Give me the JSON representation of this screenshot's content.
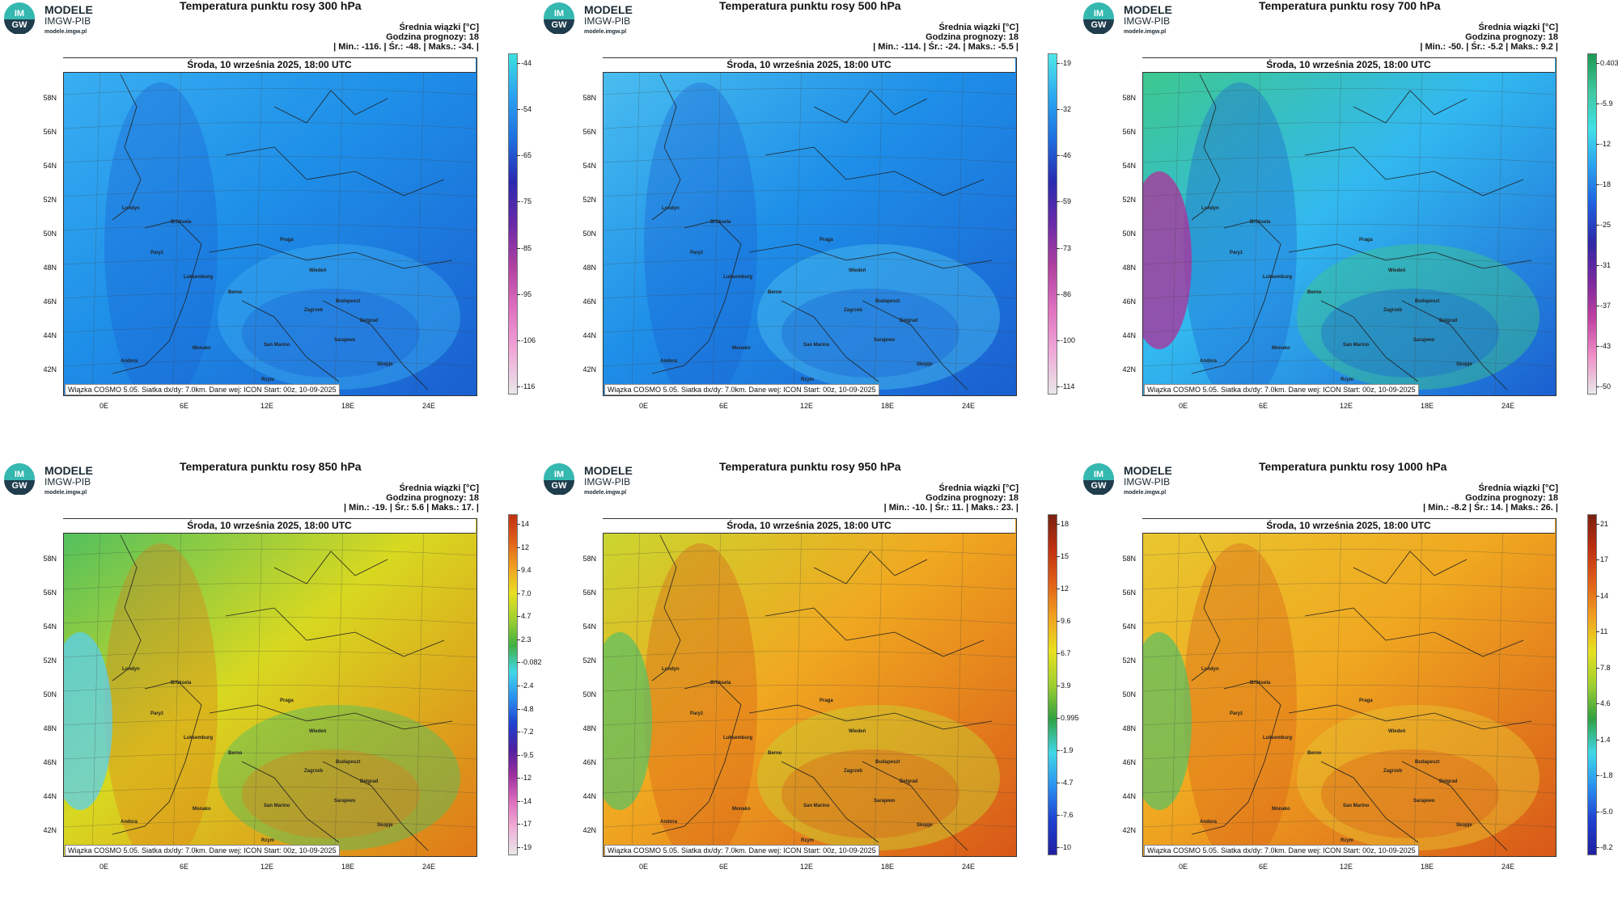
{
  "logo": {
    "line1": "MODELE",
    "line2": "IMGW-PIB",
    "line3": "modele.imgw.pl",
    "badge_top": "IM",
    "badge_bottom": "GW"
  },
  "date": "Środa, 10 września 2025, 18:00 UTC",
  "footer": "Wiązka COSMO 5.05. Siatka dx/dy: 7.0km. Dane wej: ICON Start: 00z, 10-09-2025",
  "lat_labels": [
    "58N",
    "56N",
    "54N",
    "52N",
    "50N",
    "48N",
    "46N",
    "44N",
    "42N"
  ],
  "lon_labels": [
    "0E",
    "6E",
    "12E",
    "18E",
    "24E"
  ],
  "cities": [
    "Londyn",
    "Bruksela",
    "Paryż",
    "Luksemburg",
    "Praga",
    "Wiedeń",
    "Budapeszt",
    "Berno",
    "Zagrzeb",
    "Belgrad",
    "San Marino",
    "Sarajewo",
    "Andora",
    "Monako",
    "Rzym",
    "Skopje"
  ],
  "panels": [
    {
      "id": "p300",
      "title": "Temperatura punktu rosy 300 hPa",
      "mean_label": "Średnia wiązki [°C]",
      "forecast_hour": "Godzina prognozy: 18",
      "stats": "| Min.:   -116. | Śr.:   -48. | Maks.:   -34. |",
      "scale": [
        "-44",
        "-54",
        "-65",
        "-75",
        "-85",
        "-95",
        "-106",
        "-116"
      ],
      "colors": {
        "base": "#1e8fe8",
        "dark": "#1a5fd0",
        "light": "#3bb0f2"
      }
    },
    {
      "id": "p500",
      "title": "Temperatura punktu rosy 500 hPa",
      "mean_label": "Średnia wiązki [°C]",
      "forecast_hour": "Godzina prognozy: 18",
      "stats": "| Min.:   -114. | Śr.:   -24. | Maks.:   -5.5 |",
      "scale": [
        "-19",
        "-32",
        "-46",
        "-59",
        "-73",
        "-86",
        "-100",
        "-114"
      ],
      "colors": {
        "base": "#1e8fe8",
        "dark": "#1a5fd0",
        "light": "#4cc0f0"
      }
    },
    {
      "id": "p700",
      "title": "Temperatura punktu rosy 700 hPa",
      "mean_label": "Średnia wiązki [°C]",
      "forecast_hour": "Godzina prognozy: 18",
      "stats": "| Min.:   -50. | Śr.:   -5.2 | Maks.:   9.2 |",
      "scale": [
        "0.403",
        "-5.9",
        "-12",
        "-18",
        "-25",
        "-31",
        "-37",
        "-43",
        "-50"
      ],
      "colors": {
        "base": "#32b8f0",
        "dark": "#1a5fd0",
        "light": "#3ec98a",
        "accent": "#b0309a"
      }
    },
    {
      "id": "p850",
      "title": "Temperatura punktu rosy 850 hPa",
      "mean_label": "Średnia wiązki [°C]",
      "forecast_hour": "Godzina prognozy: 18",
      "stats": "| Min.:   -19. | Śr.:   5.6 | Maks.:   17. |",
      "scale": [
        "14",
        "12",
        "9.4",
        "7.0",
        "4.7",
        "2.3",
        "-0.082",
        "-2.4",
        "-4.8",
        "-7.2",
        "-9.5",
        "-12",
        "-14",
        "-17",
        "-19"
      ],
      "colors": {
        "base": "#d8d820",
        "dark": "#e07818",
        "light": "#4cc060",
        "accent": "#5ad0f0"
      }
    },
    {
      "id": "p950",
      "title": "Temperatura punktu rosy 950 hPa",
      "mean_label": "Średnia wiązki [°C]",
      "forecast_hour": "Godzina prognozy: 18",
      "stats": "| Min.:   -10. | Śr.:   11. | Maks.:   23. |",
      "scale": [
        "18",
        "15",
        "12",
        "9.6",
        "6.7",
        "3.9",
        "0.995",
        "-1.9",
        "-4.7",
        "-7.6",
        "-10"
      ],
      "colors": {
        "base": "#f0a820",
        "dark": "#d85818",
        "light": "#c8d830",
        "accent": "#60c060"
      }
    },
    {
      "id": "p1000",
      "title": "Temperatura punktu rosy 1000 hPa",
      "mean_label": "Średnia wiązki [°C]",
      "forecast_hour": "Godzina prognozy: 18",
      "stats": "| Min.:   -8.2 | Śr.:   14. | Maks.:   26. |",
      "scale": [
        "21",
        "17",
        "14",
        "11",
        "7.8",
        "4.6",
        "1.4",
        "-1.8",
        "-5.0",
        "-8.2"
      ],
      "colors": {
        "base": "#f0a820",
        "dark": "#d85818",
        "light": "#e8c830",
        "accent": "#60c060"
      }
    }
  ]
}
